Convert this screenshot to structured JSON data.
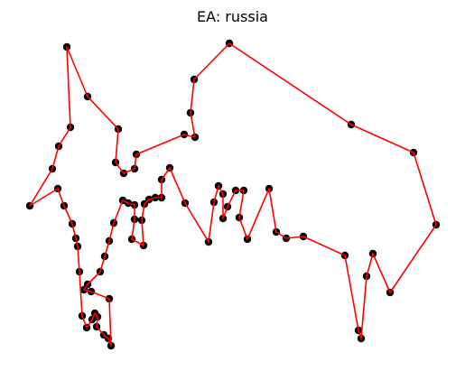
{
  "chart_data": {
    "type": "scatter",
    "title": "EA: russia",
    "xlabel": "",
    "ylabel": "",
    "axes_visible": false,
    "grid": false,
    "marker_color": "#000000",
    "line_color": "#ff0000",
    "tour_closed": true,
    "points": [
      [
        74,
        52
      ],
      [
        97,
        107
      ],
      [
        131,
        143
      ],
      [
        128,
        180
      ],
      [
        137,
        192
      ],
      [
        149,
        187
      ],
      [
        151,
        171
      ],
      [
        204,
        149
      ],
      [
        216,
        152
      ],
      [
        211,
        125
      ],
      [
        215,
        88
      ],
      [
        254,
        48
      ],
      [
        389,
        138
      ],
      [
        458,
        169
      ],
      [
        483,
        249
      ],
      [
        432,
        324
      ],
      [
        413,
        281
      ],
      [
        406,
        306
      ],
      [
        400,
        375
      ],
      [
        397,
        366
      ],
      [
        382,
        283
      ],
      [
        336,
        262
      ],
      [
        317,
        264
      ],
      [
        306,
        257
      ],
      [
        298,
        209
      ],
      [
        274,
        265
      ],
      [
        265,
        241
      ],
      [
        270,
        211
      ],
      [
        261,
        211
      ],
      [
        252,
        229
      ],
      [
        247,
        242
      ],
      [
        247,
        215
      ],
      [
        242,
        206
      ],
      [
        237,
        224
      ],
      [
        231,
        268
      ],
      [
        205,
        225
      ],
      [
        188,
        186
      ],
      [
        179,
        199
      ],
      [
        179,
        219
      ],
      [
        172,
        219
      ],
      [
        165,
        221
      ],
      [
        160,
        226
      ],
      [
        157,
        244
      ],
      [
        159,
        272
      ],
      [
        146,
        265
      ],
      [
        149,
        243
      ],
      [
        149,
        227
      ],
      [
        142,
        225
      ],
      [
        136,
        222
      ],
      [
        126,
        247
      ],
      [
        121,
        267
      ],
      [
        116,
        284
      ],
      [
        111,
        301
      ],
      [
        97,
        315
      ],
      [
        93,
        321
      ],
      [
        101,
        323
      ],
      [
        121,
        331
      ],
      [
        123,
        383
      ],
      [
        120,
        375
      ],
      [
        115,
        371
      ],
      [
        107,
        362
      ],
      [
        108,
        351
      ],
      [
        105,
        347
      ],
      [
        102,
        354
      ],
      [
        96,
        363
      ],
      [
        91,
        350
      ],
      [
        88,
        301
      ],
      [
        86,
        273
      ],
      [
        84,
        264
      ],
      [
        80,
        248
      ],
      [
        71,
        228
      ],
      [
        64,
        209
      ],
      [
        33,
        228
      ],
      [
        58,
        187
      ],
      [
        65,
        162
      ],
      [
        78,
        141
      ]
    ]
  }
}
